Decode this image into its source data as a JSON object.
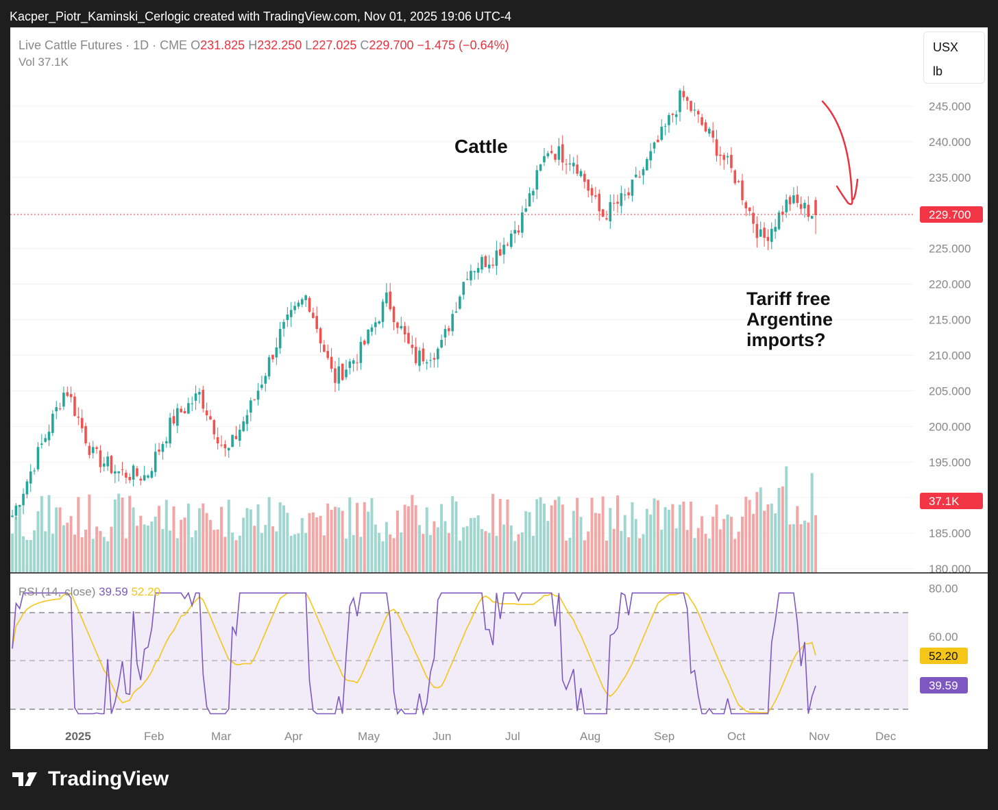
{
  "header": {
    "attribution": "Kacper_Piotr_Kaminski_Cerlogic created with TradingView.com, Nov 01, 2025 19:06 UTC-4"
  },
  "legend": {
    "symbol": "Live Cattle Futures · 1D · CME",
    "o_label": "O",
    "o_value": "231.825",
    "h_label": "H",
    "h_value": "232.250",
    "l_label": "L",
    "l_value": "227.025",
    "c_label": "C",
    "c_value": "229.700",
    "change": "−1.475 (−0.64%)",
    "vol_label": "Vol",
    "vol_value": "37.1K"
  },
  "units": {
    "currency": "USX",
    "unit": "lb"
  },
  "annotations": {
    "title": "Cattle",
    "note_line1": "Tariff free",
    "note_line2": "Argentine",
    "note_line3": "imports?"
  },
  "price_axis": {
    "ticks": [
      "245.000",
      "240.000",
      "235.000",
      "230.000",
      "225.000",
      "220.000",
      "215.000",
      "210.000",
      "205.000",
      "200.000",
      "195.000",
      "190.000",
      "185.000",
      "180.000"
    ],
    "last_price_badge": "229.700",
    "volume_badge": "37.1K"
  },
  "rsi": {
    "label": "RSI (14, close)",
    "value": "39.59",
    "ma_value": "52.20",
    "ticks": [
      "80.00",
      "60.00"
    ],
    "badge_rsi": "39.59",
    "badge_ma": "52.20"
  },
  "time_axis": {
    "labels": [
      "2025",
      "Feb",
      "Mar",
      "Apr",
      "May",
      "Jun",
      "Jul",
      "Aug",
      "Sep",
      "Oct",
      "Nov",
      "Dec"
    ]
  },
  "brand": {
    "name": "TradingView"
  },
  "colors": {
    "up": "#26a69a",
    "down": "#ef5350",
    "rsi_line": "#7e57c2",
    "rsi_ma": "#f5c518",
    "annotation_arrow": "#e8333f",
    "badge_red": "#f23645"
  },
  "chart_data": {
    "type": "candlestick",
    "title": "Live Cattle Futures · 1D · CME",
    "ylabel": "USX / lb",
    "ylim": [
      180,
      250
    ],
    "x": [
      "2025-01-02",
      "2025-01-17",
      "2025-01-27",
      "2025-02-06",
      "2025-02-20",
      "2025-03-05",
      "2025-03-19",
      "2025-03-31",
      "2025-04-04",
      "2025-04-15",
      "2025-04-30",
      "2025-05-13",
      "2025-05-20",
      "2025-06-03",
      "2025-06-11",
      "2025-06-23",
      "2025-07-01",
      "2025-07-15",
      "2025-07-29",
      "2025-08-12",
      "2025-08-26",
      "2025-09-02",
      "2025-09-10",
      "2025-09-16",
      "2025-09-26",
      "2025-10-06",
      "2025-10-14",
      "2025-10-17",
      "2025-10-22",
      "2025-10-24",
      "2025-10-31"
    ],
    "close_path": [
      187.5,
      196.5,
      205.5,
      196.0,
      193.5,
      193.0,
      201.0,
      204.5,
      196.0,
      203.5,
      213.0,
      218.5,
      206.5,
      210.5,
      218.0,
      209.5,
      211.0,
      222.0,
      224.0,
      229.0,
      239.0,
      237.5,
      229.5,
      232.5,
      239.0,
      246.5,
      241.0,
      235.0,
      226.0,
      231.8,
      229.7
    ],
    "last": {
      "open": 231.825,
      "high": 232.25,
      "low": 227.025,
      "close": 229.7,
      "change": -1.475,
      "change_pct": -0.64,
      "volume": "37.1K"
    },
    "rsi": {
      "period": 14,
      "last": 39.59,
      "ma_last": 52.2,
      "overbought": 70,
      "oversold": 30
    }
  }
}
